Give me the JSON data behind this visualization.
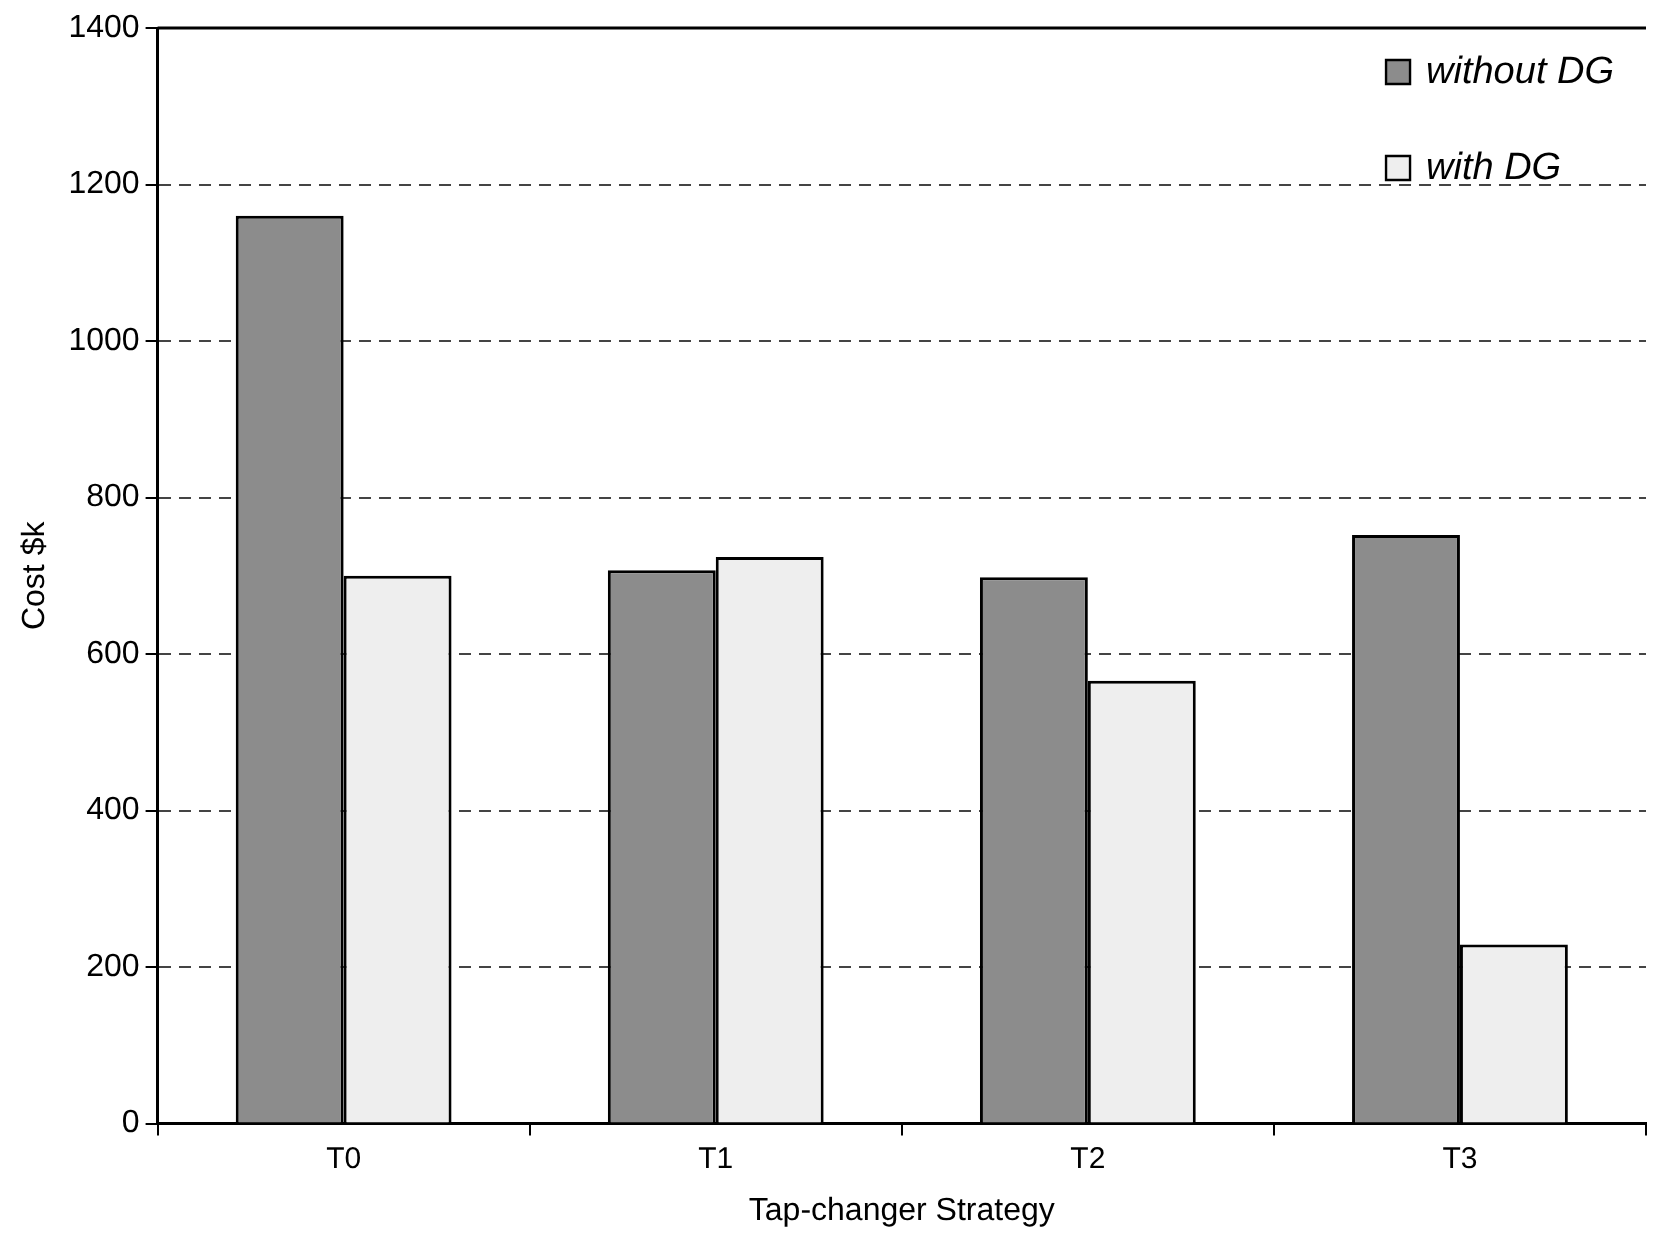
{
  "chart_data": {
    "type": "bar",
    "xlabel": "Tap-changer Strategy",
    "ylabel": "Cost $k",
    "categories": [
      "T0",
      "T1",
      "T2",
      "T3"
    ],
    "series": [
      {
        "name": "without DG",
        "color": "#8c8c8c",
        "values": [
          1160,
          707,
          698,
          752
        ]
      },
      {
        "name": "with DG",
        "color": "#eeeeee",
        "values": [
          700,
          724,
          566,
          229
        ]
      }
    ],
    "ylim": [
      0,
      1400
    ],
    "yticks": [
      0,
      200,
      400,
      600,
      800,
      1000,
      1200,
      1400
    ],
    "grid": "y",
    "legend": "top right"
  }
}
